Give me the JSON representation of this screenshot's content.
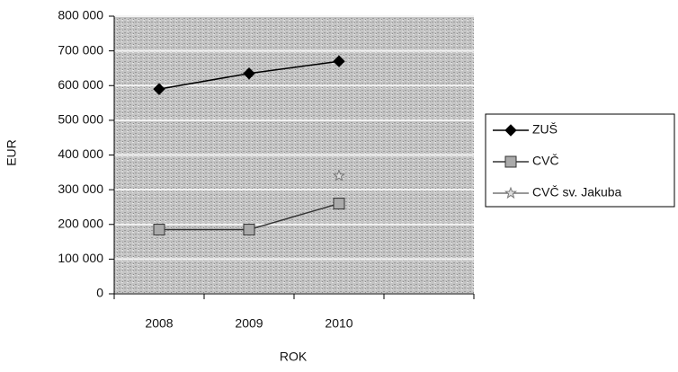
{
  "chart_data": {
    "type": "line",
    "x_label": "ROK",
    "y_label": "EUR",
    "categories": [
      "2008",
      "2009",
      "2010",
      null
    ],
    "series": [
      {
        "name": "ZUŠ",
        "color": "#000000",
        "marker": "diamond",
        "values": [
          590000,
          635000,
          670000,
          null
        ]
      },
      {
        "name": "CVČ",
        "color": "#333333",
        "marker": "square",
        "values": [
          185000,
          185000,
          260000,
          null
        ]
      },
      {
        "name": "CVČ sv. Jakuba",
        "color": "#777777",
        "marker": "star",
        "values": [
          null,
          null,
          340000,
          null
        ]
      }
    ],
    "ylim": [
      0,
      800000
    ],
    "yticks": [
      0,
      {
        "value": 100000,
        "label": "100 000"
      },
      {
        "value": 200000,
        "label": "200 000"
      },
      {
        "value": 300000,
        "label": "300 000"
      },
      {
        "value": 400000,
        "label": "400 000"
      },
      {
        "value": 500000,
        "label": "500 000"
      },
      {
        "value": 600000,
        "label": "600 000"
      },
      {
        "value": 700000,
        "label": "700 000"
      },
      {
        "value": 800000,
        "label": "800 000"
      }
    ],
    "grid": true,
    "legend": "right"
  }
}
